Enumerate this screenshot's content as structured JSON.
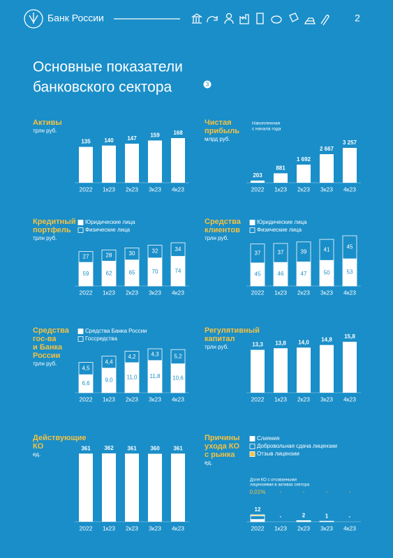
{
  "header": {
    "brand": "Банк России",
    "page": "2"
  },
  "page_title": [
    "Основные показатели",
    "банковского сектора"
  ],
  "footnote": "3",
  "chart_data": [
    {
      "type": "bar",
      "title": [
        "Активы"
      ],
      "unit": "трлн руб.",
      "categories": [
        "2022",
        "1к23",
        "2к23",
        "3к23",
        "4к23"
      ],
      "values": [
        135,
        140,
        147,
        159,
        168
      ],
      "color": "#ffffff"
    },
    {
      "type": "bar",
      "title": [
        "Чистая",
        "прибыль"
      ],
      "unit": "млрд руб.",
      "note": [
        "Накопленная",
        "с начала года"
      ],
      "categories": [
        "2022",
        "1к23",
        "2к23",
        "3к23",
        "4к23"
      ],
      "values": [
        203,
        881,
        1692,
        2667,
        3257
      ],
      "value_labels": [
        "203",
        "881",
        "1 692",
        "2 667",
        "3 257"
      ],
      "color": "#ffffff"
    },
    {
      "type": "stacked-bar",
      "title": [
        "Кредитный",
        "портфель"
      ],
      "unit": "трлн руб.",
      "categories": [
        "2022",
        "1к23",
        "2к23",
        "3к23",
        "4к23"
      ],
      "series": [
        {
          "name": "Юридические лица",
          "color": "#ffffff",
          "values": [
            59,
            62,
            65,
            70,
            74
          ]
        },
        {
          "name": "Физические лица",
          "color": "#1a8ec8",
          "values": [
            27,
            28,
            30,
            32,
            34
          ]
        }
      ]
    },
    {
      "type": "stacked-bar",
      "title": [
        "Средства",
        "клиентов"
      ],
      "unit": "трлн руб.",
      "categories": [
        "2022",
        "1к23",
        "2к23",
        "3к23",
        "4к23"
      ],
      "series": [
        {
          "name": "Юридические лица",
          "color": "#ffffff",
          "values": [
            45,
            46,
            47,
            50,
            53
          ]
        },
        {
          "name": "Физические лица",
          "color": "#1a8ec8",
          "values": [
            37,
            37,
            39,
            41,
            45
          ]
        }
      ]
    },
    {
      "type": "stacked-bar",
      "title": [
        "Средства",
        "гос-ва",
        "и Банка",
        "России"
      ],
      "unit": "трлн руб.",
      "categories": [
        "2022",
        "1к23",
        "2к23",
        "3к23",
        "4к23"
      ],
      "series": [
        {
          "name": "Средства Банка России",
          "color": "#ffffff",
          "values": [
            6.6,
            9.0,
            11.0,
            11.8,
            10.6
          ],
          "value_labels": [
            "6,6",
            "9,0",
            "11,0",
            "11,8",
            "10,6"
          ]
        },
        {
          "name": "Госсредства",
          "color": "#1a8ec8",
          "values": [
            4.5,
            4.4,
            4.2,
            4.3,
            5.2
          ],
          "value_labels": [
            "4,5",
            "4,4",
            "4,2",
            "4,3",
            "5,2"
          ]
        }
      ]
    },
    {
      "type": "bar",
      "title": [
        "Регулятивный",
        "капитал"
      ],
      "unit": "трлн руб.",
      "categories": [
        "2022",
        "1к23",
        "2к23",
        "3к23",
        "4к23"
      ],
      "values": [
        13.3,
        13.8,
        14.0,
        14.8,
        15.8
      ],
      "value_labels": [
        "13,3",
        "13,8",
        "14,0",
        "14,8",
        "15,8"
      ],
      "color": "#ffffff"
    },
    {
      "type": "bar",
      "title": [
        "Действующие",
        "КО"
      ],
      "unit": "ед.",
      "categories": [
        "2022",
        "1к23",
        "2к23",
        "3к23",
        "4к23"
      ],
      "values": [
        361,
        362,
        361,
        360,
        361
      ],
      "color": "#ffffff"
    },
    {
      "type": "stacked-bar",
      "title": [
        "Причины",
        "ухода КО",
        "с рынка"
      ],
      "unit": "ед.",
      "categories": [
        "2022",
        "1к23",
        "2к23",
        "3к23",
        "4к23"
      ],
      "series": [
        {
          "name": "Слияния",
          "color": "#ffffff",
          "values": [
            4,
            0,
            1,
            0,
            0
          ]
        },
        {
          "name": "Добровольная сдача лицензии",
          "color": "#1a8ec8",
          "values": [
            6,
            0,
            1,
            1,
            0
          ]
        },
        {
          "name": "Отзыв лицензии",
          "color": "#f5c242",
          "values": [
            2,
            0,
            0,
            0,
            0
          ]
        }
      ],
      "totals": [
        12,
        0,
        2,
        1,
        0
      ],
      "total_labels": [
        "12",
        "-",
        "2",
        "1",
        "-"
      ],
      "note": [
        "Доля КО с отозванными",
        "лицензиями в активах сектора"
      ],
      "share": [
        0.01,
        0,
        0,
        0,
        0
      ],
      "share_labels": [
        "0,01%",
        "-",
        "-",
        "-",
        "-"
      ]
    }
  ]
}
